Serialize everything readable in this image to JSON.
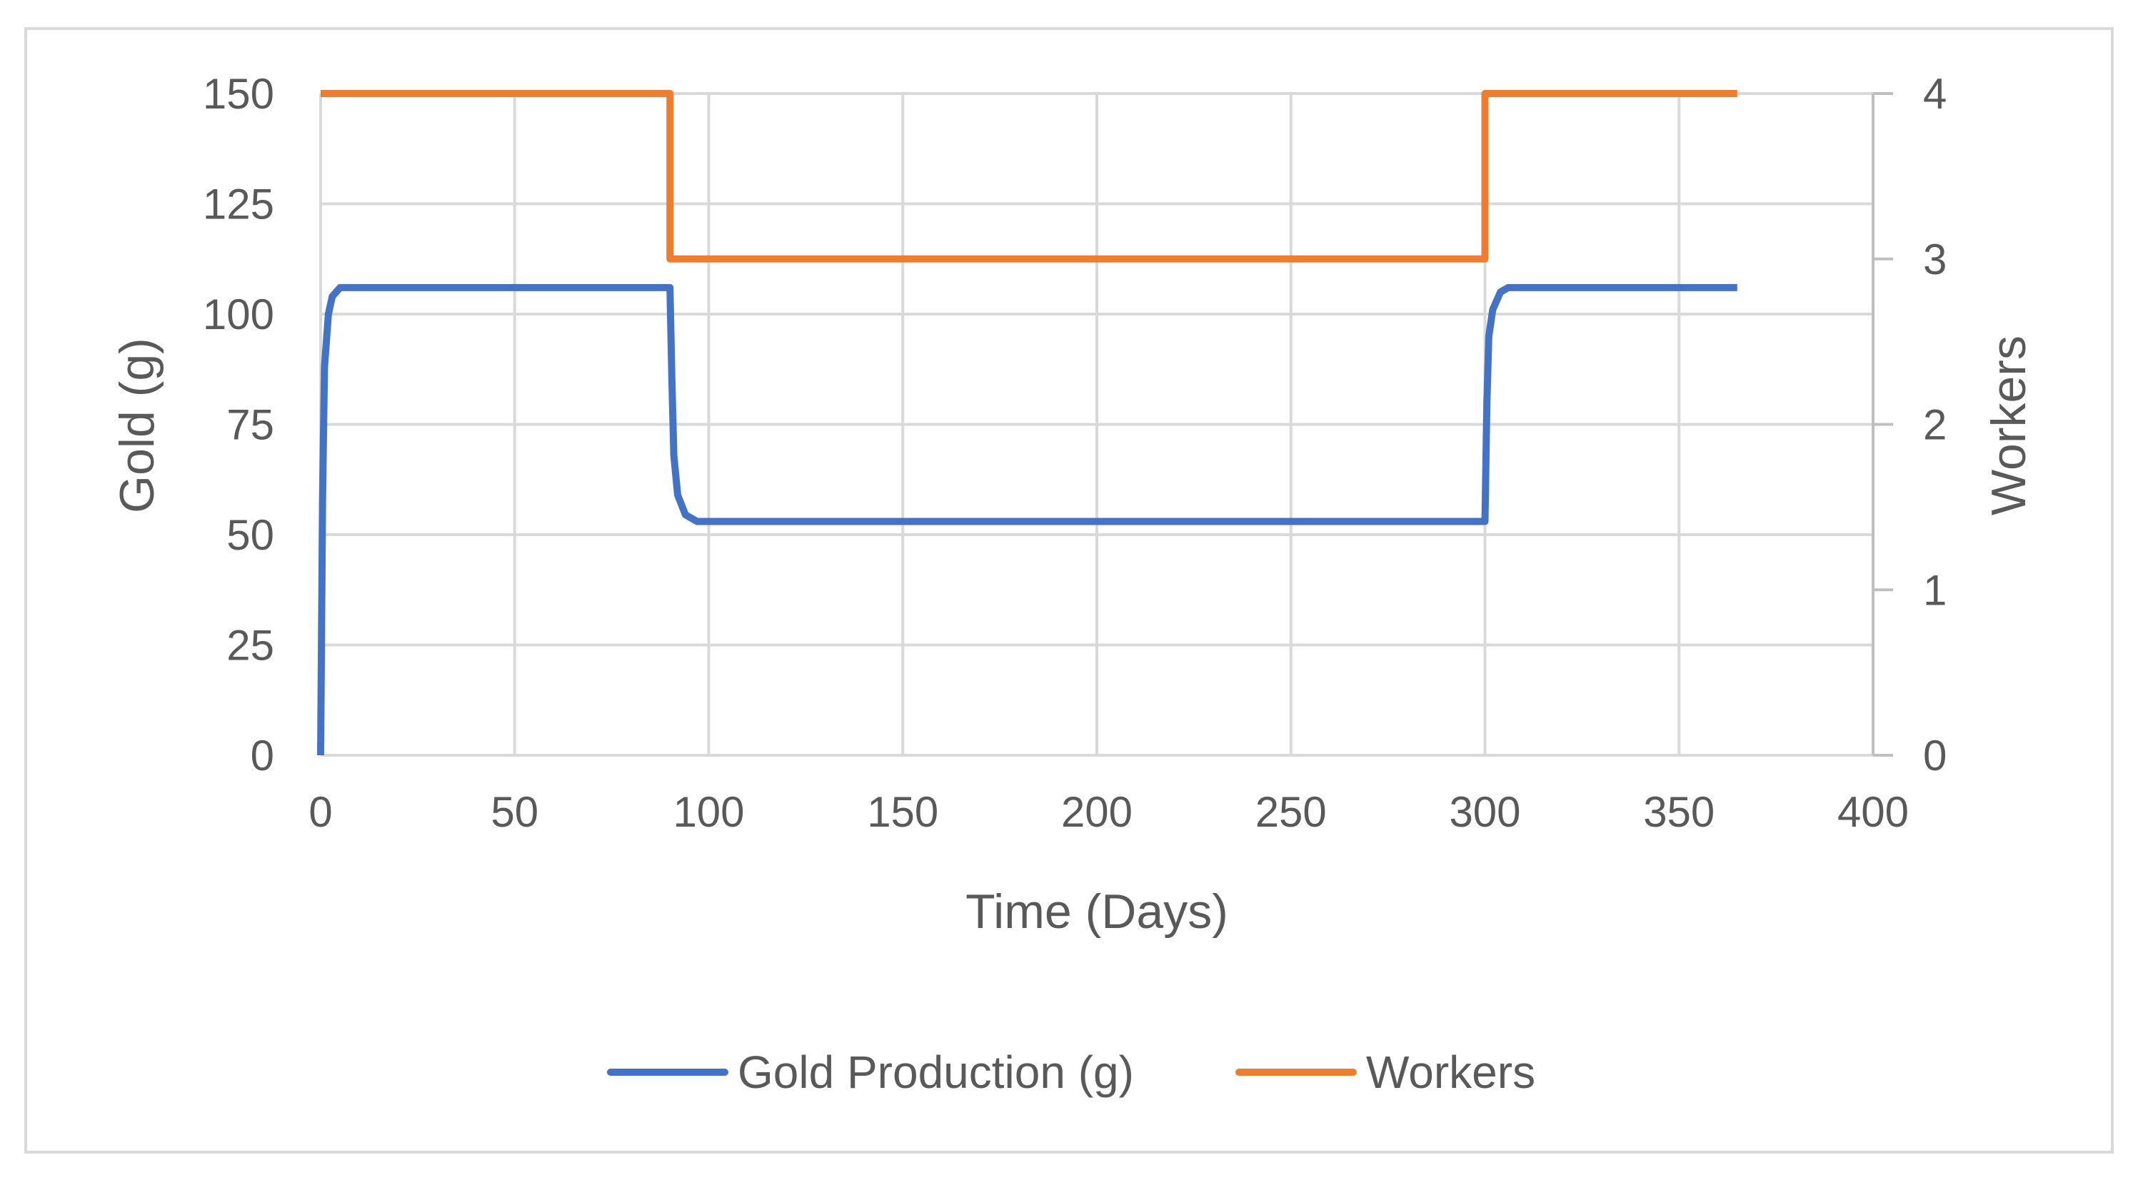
{
  "chart_data": {
    "type": "line",
    "title": "",
    "xlabel": "Time (Days)",
    "ylabel": "Gold (g)",
    "y2label": "Workers",
    "xlim": [
      0,
      400
    ],
    "ylim": [
      0,
      150
    ],
    "y2lim": [
      0,
      4
    ],
    "x_ticks": [
      "0",
      "50",
      "100",
      "150",
      "200",
      "250",
      "300",
      "350",
      "400"
    ],
    "y_ticks": [
      "0",
      "25",
      "50",
      "75",
      "100",
      "125",
      "150"
    ],
    "y2_ticks": [
      "0",
      "1",
      "2",
      "3",
      "4"
    ],
    "grid": true,
    "legend_position": "bottom",
    "series": [
      {
        "name": "Gold Production (g)",
        "axis": "left",
        "color": "#4472c4",
        "points": [
          [
            0,
            0
          ],
          [
            0.5,
            58
          ],
          [
            1,
            88
          ],
          [
            2,
            100
          ],
          [
            3,
            104
          ],
          [
            5,
            106
          ],
          [
            90,
            106
          ],
          [
            90.5,
            85
          ],
          [
            91,
            68
          ],
          [
            92,
            59
          ],
          [
            94,
            54.5
          ],
          [
            97,
            53
          ],
          [
            300,
            53
          ],
          [
            300.5,
            80
          ],
          [
            301,
            95
          ],
          [
            302,
            101
          ],
          [
            304,
            105
          ],
          [
            306,
            106
          ],
          [
            365,
            106
          ]
        ]
      },
      {
        "name": "Workers",
        "axis": "right",
        "color": "#ed7d31",
        "points": [
          [
            0,
            4
          ],
          [
            90,
            4
          ],
          [
            90,
            3
          ],
          [
            300,
            3
          ],
          [
            300,
            4
          ],
          [
            365,
            4
          ]
        ]
      }
    ]
  }
}
